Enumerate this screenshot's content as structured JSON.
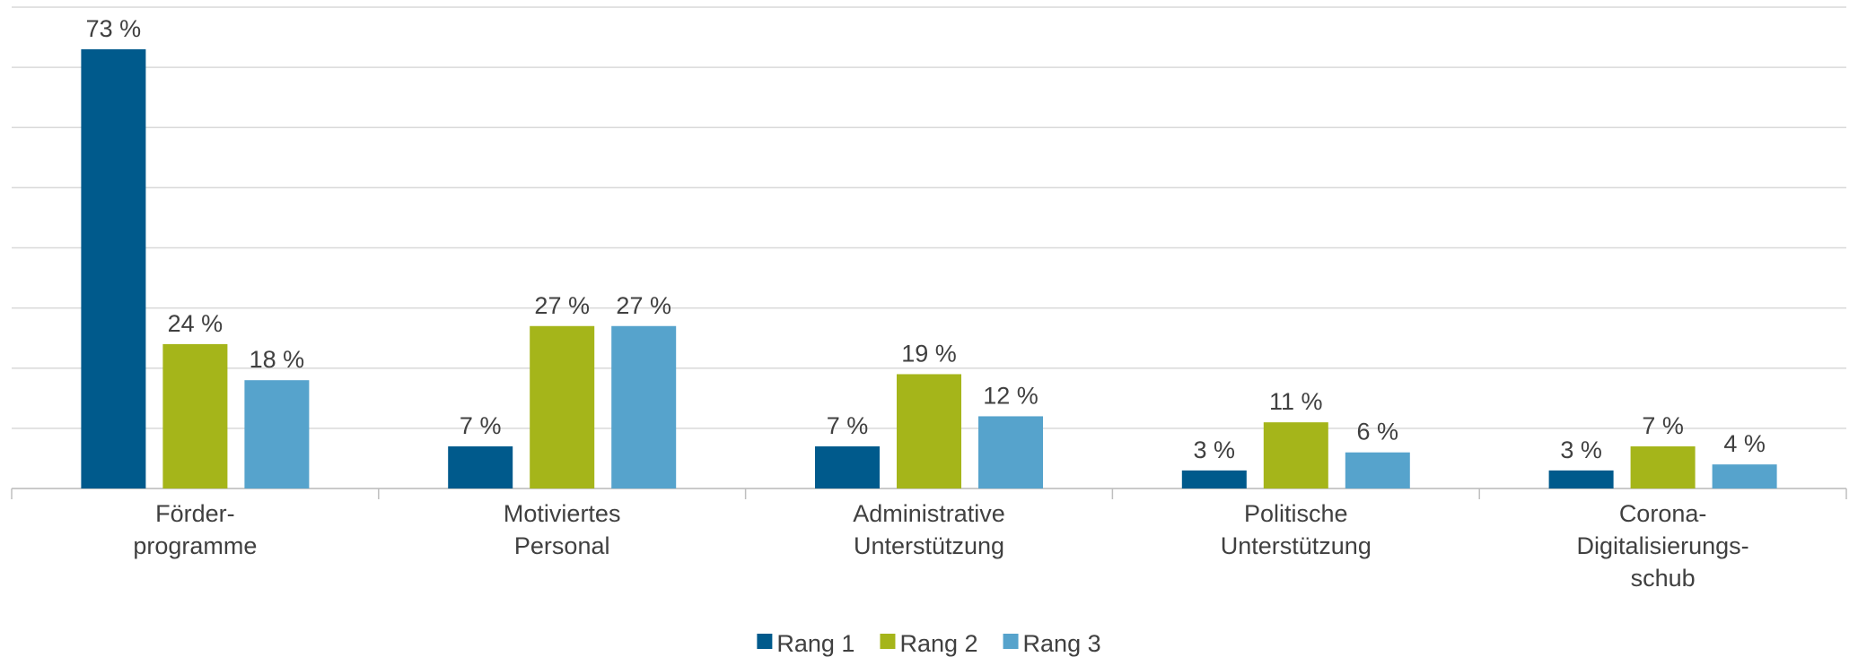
{
  "chart_data": {
    "type": "bar",
    "categories": [
      "Förder-\nprogramme",
      "Motiviertes\nPersonal",
      "Administrative\nUnterstützung",
      "Politische\nUnterstützung",
      "Corona-\nDigitalisierungs-\nschub"
    ],
    "series": [
      {
        "name": "Rang 1",
        "color": "#005a8c",
        "values": [
          73,
          7,
          7,
          3,
          3
        ],
        "value_labels": [
          "73 %",
          "7 %",
          "7 %",
          "3 %",
          "3 %"
        ]
      },
      {
        "name": "Rang 2",
        "color": "#a5b51a",
        "values": [
          24,
          27,
          19,
          11,
          7
        ],
        "value_labels": [
          "24 %",
          "27 %",
          "19 %",
          "11 %",
          "7 %"
        ]
      },
      {
        "name": "Rang 3",
        "color": "#56a3cc",
        "values": [
          18,
          27,
          12,
          6,
          4
        ],
        "value_labels": [
          "18 %",
          "27 %",
          "12 %",
          "6 %",
          "4 %"
        ]
      }
    ],
    "ylim": [
      0,
      80
    ],
    "yticks": [
      0,
      10,
      20,
      30,
      40,
      50,
      60,
      70,
      80
    ],
    "grid": true,
    "legend": "bottom"
  }
}
